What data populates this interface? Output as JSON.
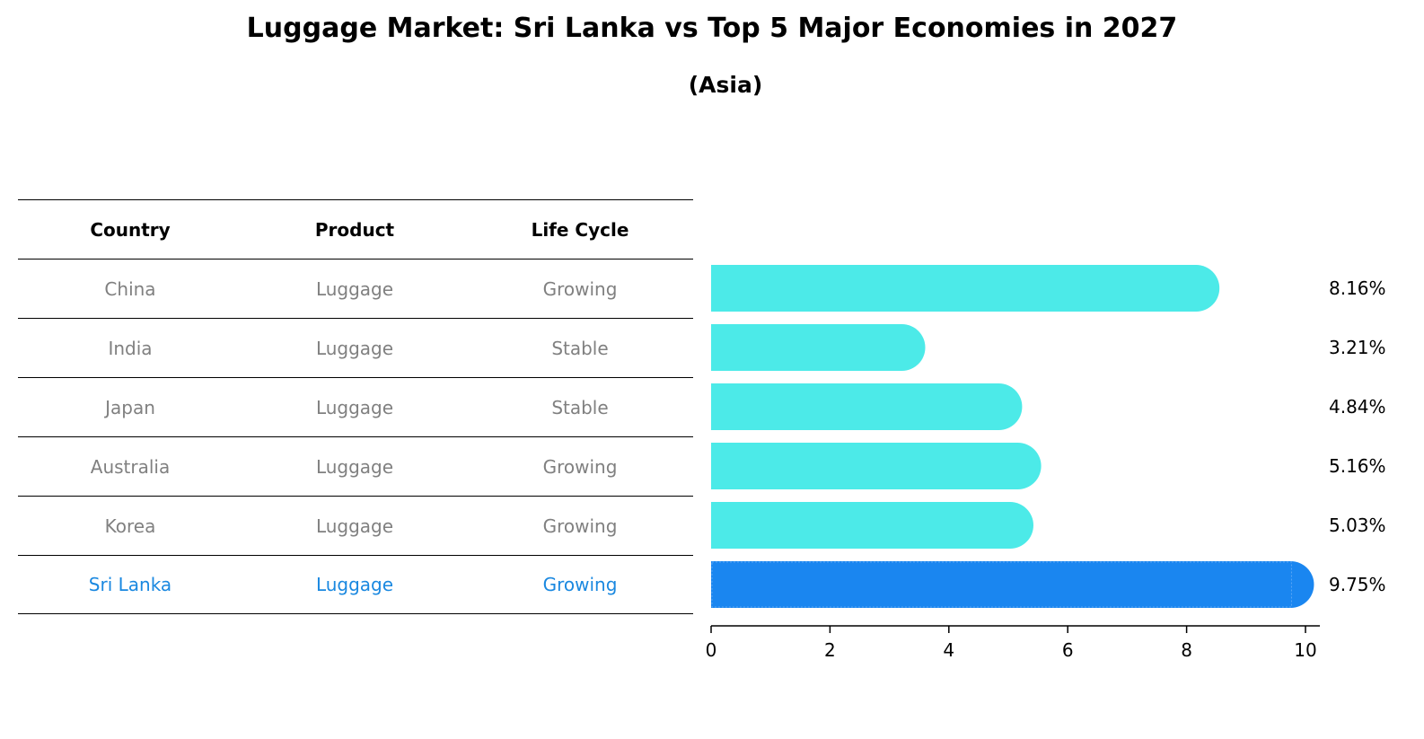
{
  "title": "Luggage Market: Sri Lanka vs Top 5 Major Economies in 2027",
  "subtitle": "(Asia)",
  "table": {
    "headers": [
      "Country",
      "Product",
      "Life Cycle"
    ],
    "rows": [
      [
        "China",
        "Luggage",
        "Growing"
      ],
      [
        "India",
        "Luggage",
        "Stable"
      ],
      [
        "Japan",
        "Luggage",
        "Stable"
      ],
      [
        "Australia",
        "Luggage",
        "Growing"
      ],
      [
        "Korea",
        "Luggage",
        "Growing"
      ],
      [
        "Sri Lanka",
        "Luggage",
        "Growing"
      ]
    ]
  },
  "chart_data": {
    "type": "bar",
    "orientation": "horizontal",
    "categories": [
      "China",
      "India",
      "Japan",
      "Australia",
      "Korea",
      "Sri Lanka"
    ],
    "values": [
      8.16,
      3.21,
      4.84,
      5.16,
      5.03,
      9.75
    ],
    "labels": [
      "8.16%",
      "3.21%",
      "4.84%",
      "5.16%",
      "5.03%",
      "9.75%"
    ],
    "xlim": [
      0,
      10
    ],
    "xticks": [
      "0",
      "2",
      "4",
      "6",
      "8",
      "10"
    ],
    "highlight": "Sri Lanka",
    "colors": {
      "default": "#4ceae8",
      "highlight": "#1a86f0",
      "highlight_text": "#1a88e0",
      "muted_text": "#808080"
    }
  }
}
